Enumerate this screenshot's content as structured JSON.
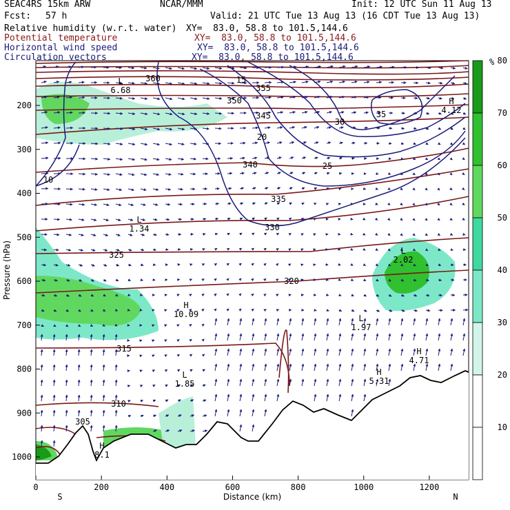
{
  "header": {
    "model": "SEAC4RS 15km ARW",
    "org": "NCAR/MMM",
    "init": "Init: 12 UTC Sun 11 Aug 13",
    "fcst_label": "Fcst:",
    "fcst_value": "57 h",
    "valid": "Valid: 21 UTC Tue 13 Aug 13 (16 CDT Tue 13 Aug 13)",
    "fields": [
      {
        "name": "Relative humidity (w.r.t. water)",
        "xy": "XY=  83.0, 58.8 to 101.5,144.6",
        "color": "#000000"
      },
      {
        "name": "Potential temperature",
        "xy": "XY=  83.0, 58.8 to 101.5,144.6",
        "color": "#8b1a1a"
      },
      {
        "name": "Horizontal wind speed",
        "xy": "XY=  83.0, 58.8 to 101.5,144.6",
        "color": "#1a1a7a"
      },
      {
        "name": "Circulation vectors",
        "xy": "XY=  83.0, 58.8 to 101.5,144.6",
        "color": "#1a1a7a"
      }
    ]
  },
  "chart_data": {
    "type": "cross-section",
    "xlabel": "Distance (km)",
    "ylabel": "Pressure (hPa)",
    "x_ticks": [
      "0",
      "200",
      "400",
      "600",
      "800",
      "1000",
      "1200"
    ],
    "x_end_labels": {
      "left": "S",
      "right": "N"
    },
    "y_ticks": [
      "200",
      "300",
      "400",
      "500",
      "600",
      "700",
      "800",
      "900",
      "1000"
    ],
    "xlim": [
      0,
      1320
    ],
    "ylim": [
      1050,
      100
    ],
    "colorbar": {
      "unit": "%",
      "levels": [
        10,
        20,
        30,
        40,
        50,
        60,
        70,
        80
      ],
      "colors": [
        "#ffffff",
        "#ffffff",
        "#d2f5ea",
        "#7de8c8",
        "#3fd9a0",
        "#60d860",
        "#30c030",
        "#1a9a1a"
      ]
    },
    "theta_labels": [
      "360",
      "355",
      "350",
      "345",
      "340",
      "335",
      "330",
      "325",
      "320",
      "315",
      "310",
      "305"
    ],
    "wind_labels": [
      "10",
      "15",
      "20",
      "25",
      "30",
      "35"
    ],
    "extrema": [
      {
        "kind": "L",
        "value": "6.68"
      },
      {
        "kind": "L",
        "value": "1.34"
      },
      {
        "kind": "H",
        "value": "10.09"
      },
      {
        "kind": "L",
        "value": "2.02"
      },
      {
        "kind": "L",
        "value": "1.97"
      },
      {
        "kind": "H",
        "value": "4.71"
      },
      {
        "kind": "H",
        "value": "5.31"
      },
      {
        "kind": "L",
        "value": "1.85"
      },
      {
        "kind": "H",
        "value": "8.1"
      },
      {
        "kind": "H",
        "value": "4.12"
      }
    ]
  }
}
